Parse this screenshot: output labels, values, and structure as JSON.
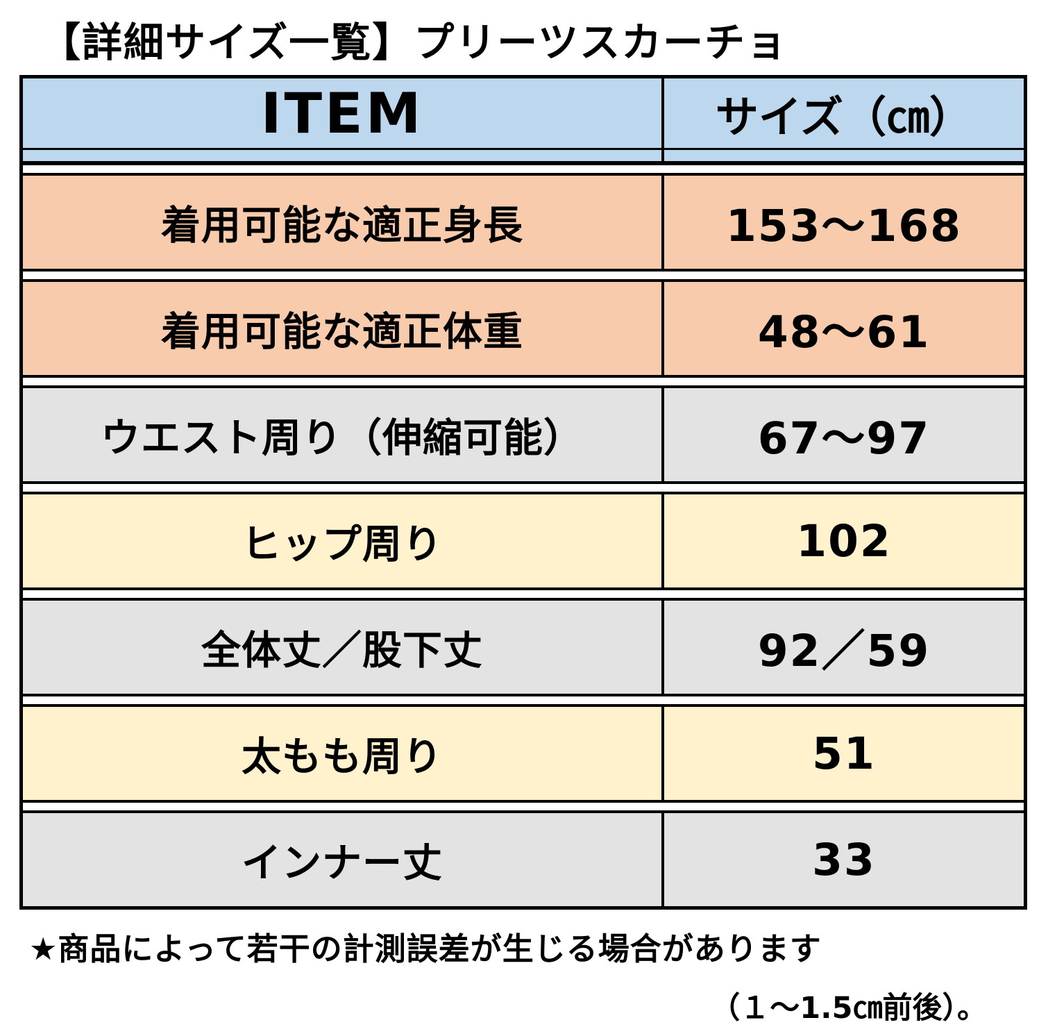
{
  "title": "【詳細サイズ一覧】プリーツスカーチョ",
  "colors": {
    "header_blue": "#BDD7EE",
    "salmon": "#F8CBAD",
    "gray": "#E3E3E3",
    "yellow": "#FFF2CC",
    "border_black": "#000000"
  },
  "table": {
    "headers": [
      "ITEM",
      "サイズ（㎝）"
    ],
    "rows": [
      {
        "item": "着用可能な適正身長",
        "size": "153～168",
        "color": "salmon"
      },
      {
        "item": "着用可能な適正体重",
        "size": "48～61",
        "color": "salmon"
      },
      {
        "item": "ウエスト周り（伸縮可能）",
        "size": "67～97",
        "color": "gray"
      },
      {
        "item": "ヒップ周り",
        "size": "102",
        "color": "yellow"
      },
      {
        "item": "全体丈／股下丈",
        "size": "92／59",
        "color": "gray"
      },
      {
        "item": "太もも周り",
        "size": "51",
        "color": "yellow"
      },
      {
        "item": "インナー丈",
        "size": "33",
        "color": "gray"
      }
    ]
  },
  "footnote_line1": "★商品によって若干の計測誤差が生じる場合があります",
  "footnote_line2": "（１～1.5㎝前後）。",
  "chart_data": {
    "type": "table",
    "title": "【詳細サイズ一覧】プリーツスカーチョ",
    "columns": [
      "ITEM",
      "サイズ（㎝）"
    ],
    "rows": [
      [
        "着用可能な適正身長",
        "153～168"
      ],
      [
        "着用可能な適正体重",
        "48～61"
      ],
      [
        "ウエスト周り（伸縮可能）",
        "67～97"
      ],
      [
        "ヒップ周り",
        "102"
      ],
      [
        "全体丈／股下丈",
        "92／59"
      ],
      [
        "太もも周り",
        "51"
      ],
      [
        "インナー丈",
        "33"
      ]
    ],
    "notes": [
      "★商品によって若干の計測誤差が生じる場合があります",
      "（１～1.5㎝前後）。"
    ]
  }
}
